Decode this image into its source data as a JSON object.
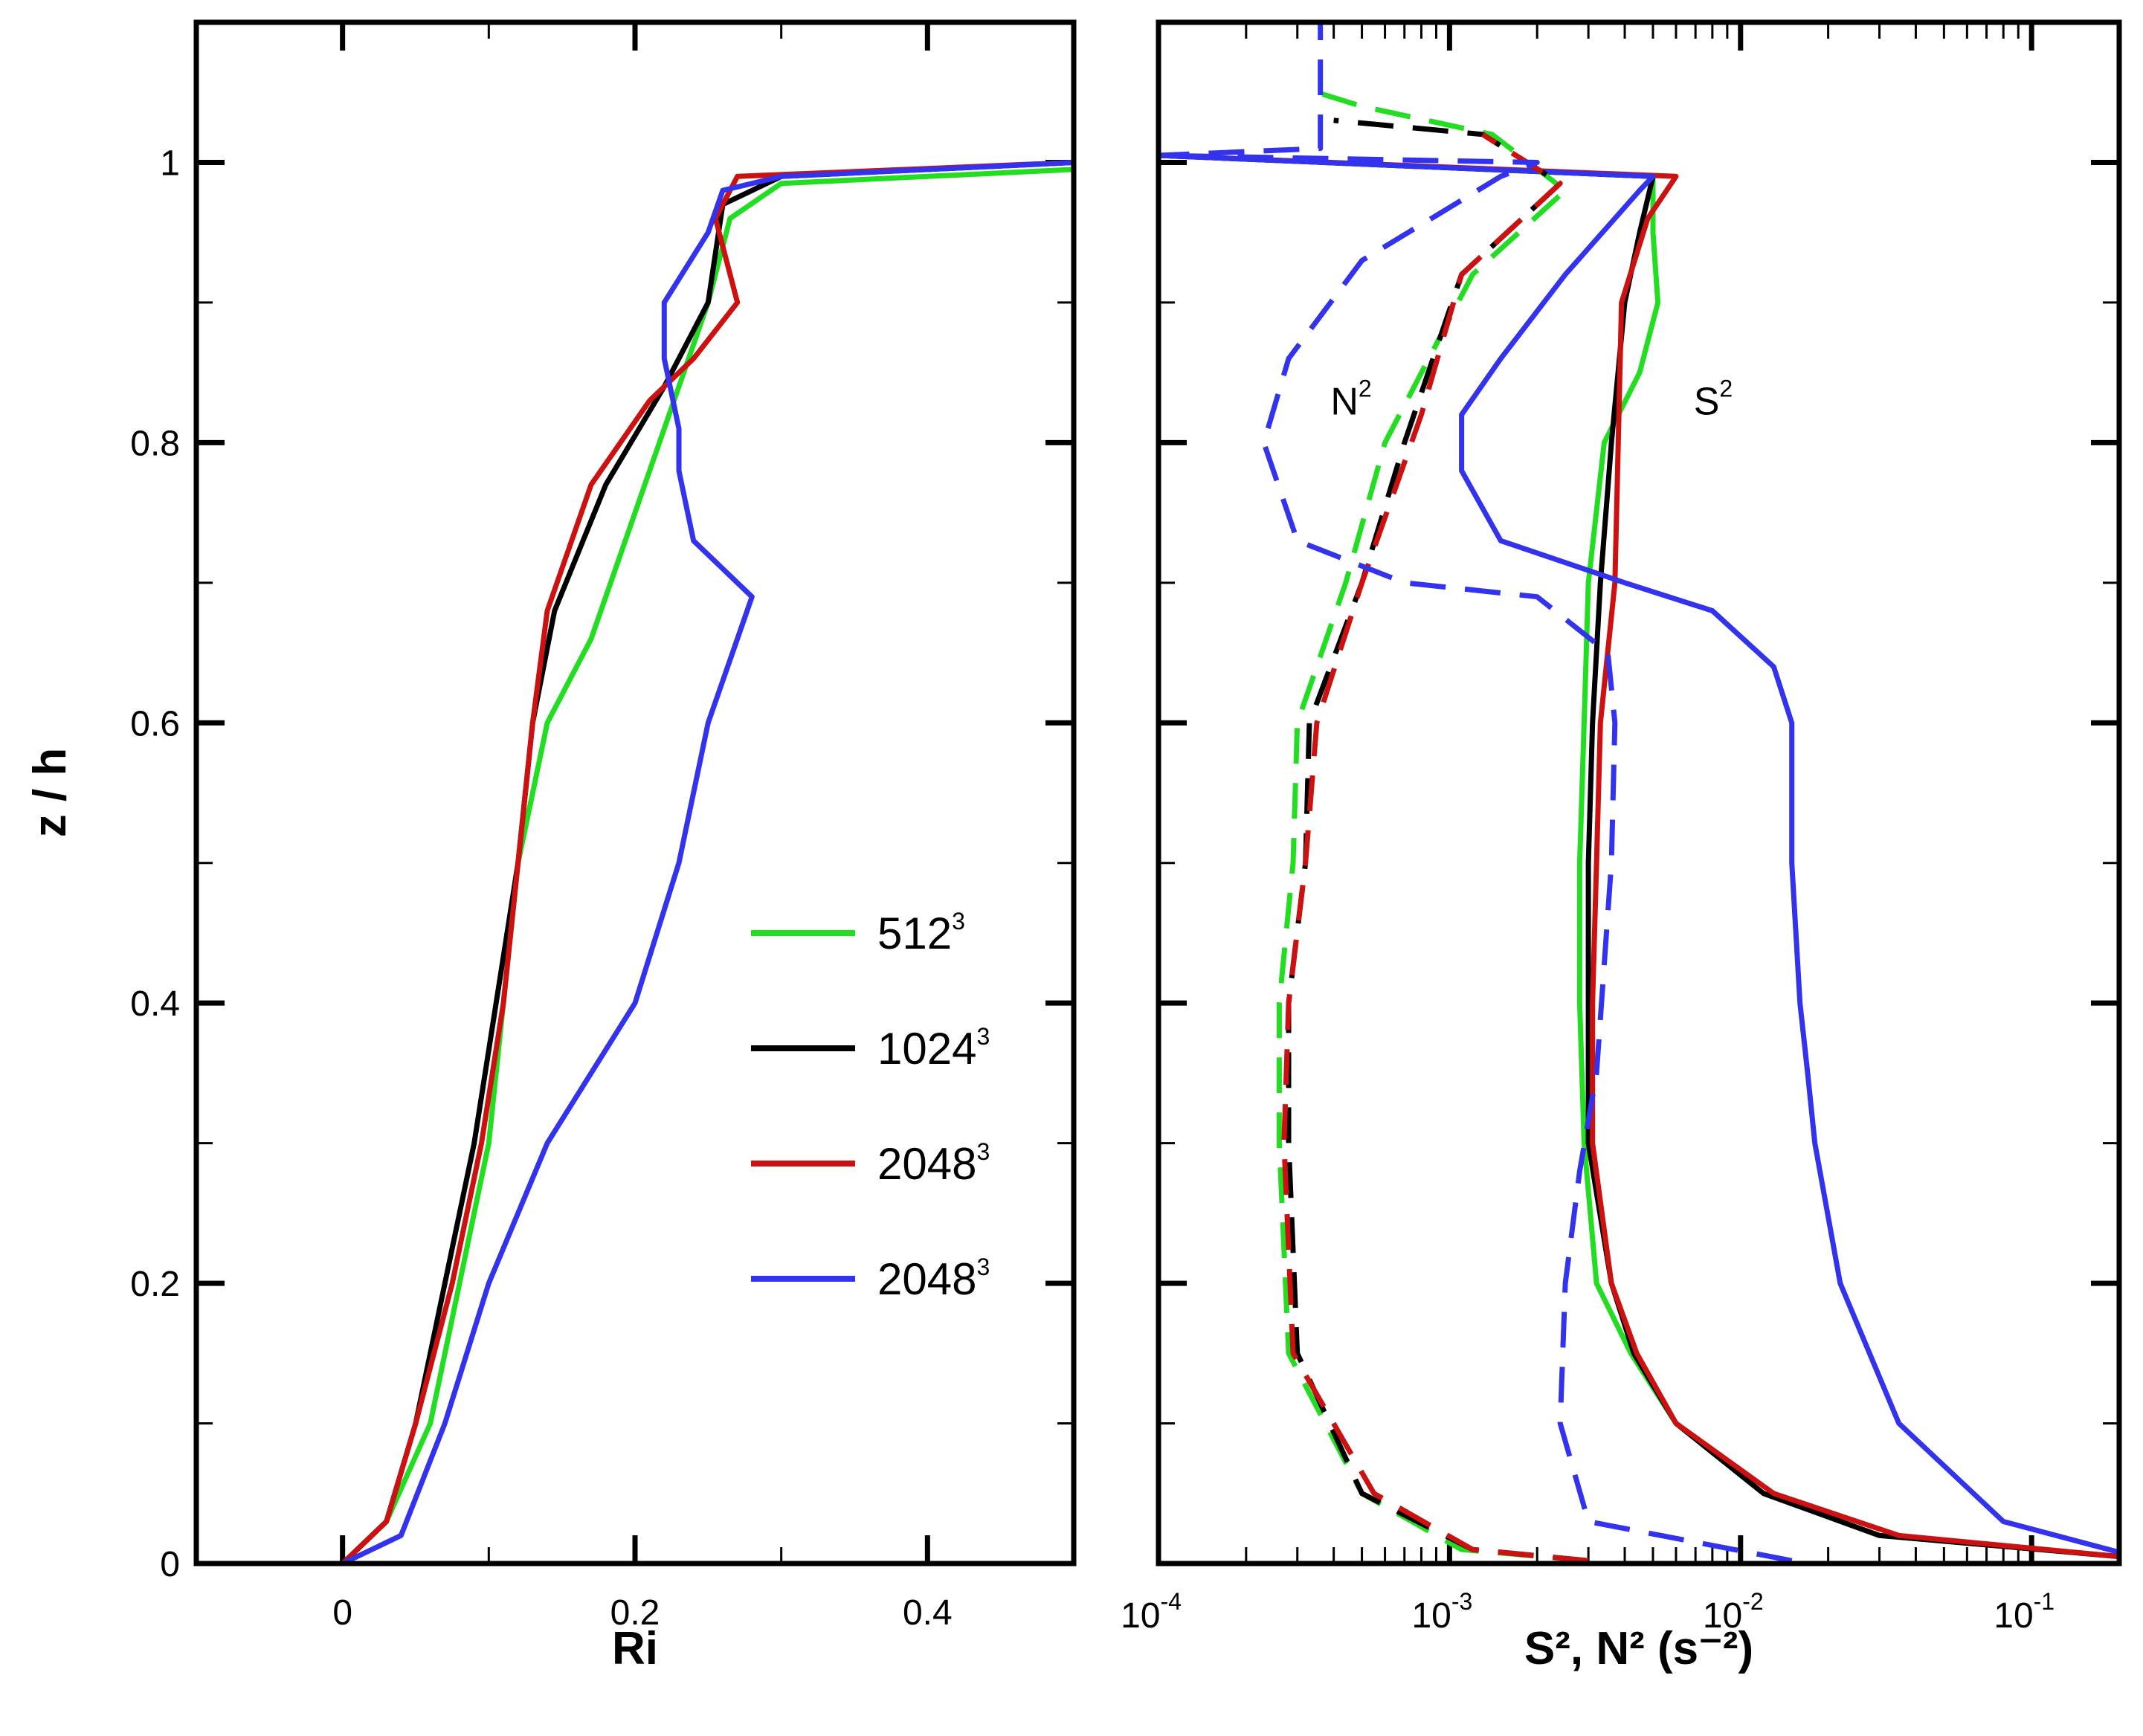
{
  "chart_data": [
    {
      "type": "line",
      "panel": "left",
      "xlabel": "Ri",
      "ylabel": "z / h",
      "xlim": [
        -0.1,
        0.5
      ],
      "ylim": [
        0,
        1.1
      ],
      "xticks": [
        0,
        0.2,
        0.4
      ],
      "xtick_labels": [
        "0",
        "0.2",
        "0.4"
      ],
      "yticks": [
        0,
        0.2,
        0.4,
        0.6,
        0.8,
        1
      ],
      "ytick_labels": [
        "0",
        "0.2",
        "0.4",
        "0.6",
        "0.8",
        "1"
      ],
      "legend": {
        "placement": "center-right",
        "entries": [
          {
            "base": "512",
            "sup": "3",
            "color": "#22dd22"
          },
          {
            "base": "1024",
            "sup": "3",
            "color": "#000000"
          },
          {
            "base": "2048",
            "sup": "3",
            "color": "#cc1111"
          },
          {
            "base": "2048",
            "sup": "3",
            "color": "#3333ee"
          }
        ]
      },
      "series": [
        {
          "name": "512^3",
          "color": "#22dd22",
          "points": [
            [
              0,
              0
            ],
            [
              0.03,
              0.03
            ],
            [
              0.06,
              0.1
            ],
            [
              0.08,
              0.2
            ],
            [
              0.1,
              0.3
            ],
            [
              0.11,
              0.4
            ],
            [
              0.12,
              0.5
            ],
            [
              0.14,
              0.6
            ],
            [
              0.17,
              0.66
            ],
            [
              0.2,
              0.75
            ],
            [
              0.23,
              0.84
            ],
            [
              0.25,
              0.9
            ],
            [
              0.265,
              0.96
            ],
            [
              0.3,
              0.985
            ],
            [
              0.5,
              0.995
            ]
          ]
        },
        {
          "name": "1024^3",
          "color": "#000000",
          "points": [
            [
              0,
              0
            ],
            [
              0.03,
              0.03
            ],
            [
              0.05,
              0.1
            ],
            [
              0.07,
              0.2
            ],
            [
              0.09,
              0.3
            ],
            [
              0.105,
              0.4
            ],
            [
              0.12,
              0.5
            ],
            [
              0.13,
              0.6
            ],
            [
              0.145,
              0.68
            ],
            [
              0.18,
              0.77
            ],
            [
              0.22,
              0.84
            ],
            [
              0.25,
              0.9
            ],
            [
              0.26,
              0.97
            ],
            [
              0.3,
              0.99
            ],
            [
              0.5,
              1.0
            ]
          ]
        },
        {
          "name": "2048^3",
          "color": "#cc1111",
          "points": [
            [
              0,
              0
            ],
            [
              0.03,
              0.03
            ],
            [
              0.05,
              0.1
            ],
            [
              0.075,
              0.2
            ],
            [
              0.095,
              0.3
            ],
            [
              0.11,
              0.4
            ],
            [
              0.12,
              0.5
            ],
            [
              0.13,
              0.6
            ],
            [
              0.14,
              0.68
            ],
            [
              0.17,
              0.77
            ],
            [
              0.21,
              0.83
            ],
            [
              0.24,
              0.86
            ],
            [
              0.27,
              0.9
            ],
            [
              0.255,
              0.96
            ],
            [
              0.27,
              0.99
            ],
            [
              0.5,
              1.0
            ]
          ]
        },
        {
          "name": "2048^3 (blue)",
          "color": "#3333ee",
          "points": [
            [
              0,
              0
            ],
            [
              0.04,
              0.02
            ],
            [
              0.07,
              0.1
            ],
            [
              0.1,
              0.2
            ],
            [
              0.14,
              0.3
            ],
            [
              0.17,
              0.35
            ],
            [
              0.2,
              0.4
            ],
            [
              0.23,
              0.5
            ],
            [
              0.25,
              0.6
            ],
            [
              0.27,
              0.66
            ],
            [
              0.28,
              0.69
            ],
            [
              0.24,
              0.73
            ],
            [
              0.23,
              0.78
            ],
            [
              0.23,
              0.81
            ],
            [
              0.22,
              0.86
            ],
            [
              0.22,
              0.9
            ],
            [
              0.25,
              0.95
            ],
            [
              0.26,
              0.98
            ],
            [
              0.3,
              0.99
            ],
            [
              0.5,
              1.0
            ]
          ]
        }
      ]
    },
    {
      "type": "line",
      "panel": "right",
      "xlabel": "S², N² (s⁻²)",
      "xscale": "log",
      "xlim": [
        0.0001,
        0.2
      ],
      "ylim": [
        0,
        1.1
      ],
      "xticks": [
        0.0001,
        0.001,
        0.01,
        0.1
      ],
      "xtick_labels": [
        {
          "base": "10",
          "exp": "-4"
        },
        {
          "base": "10",
          "exp": "-3"
        },
        {
          "base": "10",
          "exp": "-2"
        },
        {
          "base": "10",
          "exp": "-1"
        }
      ],
      "annotations": [
        {
          "text": "N",
          "sup": "2",
          "at": [
            0.00039,
            0.82
          ]
        },
        {
          "text": "S",
          "sup": "2",
          "at": [
            0.0069,
            0.82
          ]
        }
      ],
      "series": [
        {
          "name": "S² 512^3",
          "color": "#22dd22",
          "dash": "solid",
          "points": [
            [
              0.2,
              0.005
            ],
            [
              0.03,
              0.02
            ],
            [
              0.012,
              0.05
            ],
            [
              0.006,
              0.1
            ],
            [
              0.0042,
              0.15
            ],
            [
              0.0032,
              0.2
            ],
            [
              0.0029,
              0.3
            ],
            [
              0.0028,
              0.4
            ],
            [
              0.0028,
              0.5
            ],
            [
              0.0029,
              0.6
            ],
            [
              0.003,
              0.7
            ],
            [
              0.0034,
              0.8
            ],
            [
              0.0045,
              0.85
            ],
            [
              0.0052,
              0.9
            ],
            [
              0.005,
              0.95
            ],
            [
              0.005,
              0.99
            ],
            [
              0.0001,
              1.005
            ]
          ]
        },
        {
          "name": "S² 1024^3",
          "color": "#000000",
          "dash": "solid",
          "points": [
            [
              0.2,
              0.005
            ],
            [
              0.03,
              0.02
            ],
            [
              0.012,
              0.05
            ],
            [
              0.006,
              0.1
            ],
            [
              0.0043,
              0.15
            ],
            [
              0.0036,
              0.2
            ],
            [
              0.003,
              0.3
            ],
            [
              0.003,
              0.4
            ],
            [
              0.003,
              0.5
            ],
            [
              0.0031,
              0.6
            ],
            [
              0.0033,
              0.7
            ],
            [
              0.0036,
              0.8
            ],
            [
              0.004,
              0.9
            ],
            [
              0.0045,
              0.95
            ],
            [
              0.005,
              0.99
            ],
            [
              0.0001,
              1.005
            ]
          ]
        },
        {
          "name": "S² 2048^3",
          "color": "#cc1111",
          "dash": "solid",
          "points": [
            [
              0.2,
              0.005
            ],
            [
              0.035,
              0.02
            ],
            [
              0.013,
              0.05
            ],
            [
              0.006,
              0.1
            ],
            [
              0.0044,
              0.15
            ],
            [
              0.0036,
              0.2
            ],
            [
              0.0031,
              0.3
            ],
            [
              0.0031,
              0.4
            ],
            [
              0.0032,
              0.5
            ],
            [
              0.0033,
              0.6
            ],
            [
              0.0037,
              0.7
            ],
            [
              0.0038,
              0.8
            ],
            [
              0.0039,
              0.9
            ],
            [
              0.0048,
              0.96
            ],
            [
              0.006,
              0.99
            ],
            [
              0.0001,
              1.005
            ]
          ]
        },
        {
          "name": "S² 2048^3 (blue)",
          "color": "#3333ee",
          "dash": "solid",
          "points": [
            [
              0.2,
              0.008
            ],
            [
              0.08,
              0.03
            ],
            [
              0.035,
              0.1
            ],
            [
              0.022,
              0.2
            ],
            [
              0.018,
              0.3
            ],
            [
              0.017,
              0.35
            ],
            [
              0.016,
              0.4
            ],
            [
              0.015,
              0.5
            ],
            [
              0.015,
              0.6
            ],
            [
              0.013,
              0.64
            ],
            [
              0.008,
              0.68
            ],
            [
              0.004,
              0.7
            ],
            [
              0.0015,
              0.73
            ],
            [
              0.0011,
              0.78
            ],
            [
              0.0011,
              0.82
            ],
            [
              0.0015,
              0.86
            ],
            [
              0.0025,
              0.92
            ],
            [
              0.0045,
              0.98
            ],
            [
              0.005,
              0.99
            ],
            [
              0.0001,
              1.005
            ]
          ]
        },
        {
          "name": "N² 512^3",
          "color": "#22dd22",
          "dash": "dashed",
          "points": [
            [
              0.003,
              0.002
            ],
            [
              0.0011,
              0.01
            ],
            [
              0.0005,
              0.05
            ],
            [
              0.00028,
              0.15
            ],
            [
              0.00026,
              0.3
            ],
            [
              0.00026,
              0.4
            ],
            [
              0.00029,
              0.5
            ],
            [
              0.0003,
              0.6
            ],
            [
              0.00044,
              0.7
            ],
            [
              0.0006,
              0.8
            ],
            [
              0.0012,
              0.92
            ],
            [
              0.0025,
              0.98
            ],
            [
              0.0014,
              1.02
            ],
            [
              0.0005,
              1.04
            ],
            [
              0.00035,
              1.05
            ]
          ]
        },
        {
          "name": "N² 1024^3",
          "color": "#000000",
          "dash": "dashed",
          "points": [
            [
              0.003,
              0.002
            ],
            [
              0.0012,
              0.01
            ],
            [
              0.0005,
              0.05
            ],
            [
              0.0003,
              0.15
            ],
            [
              0.00028,
              0.3
            ],
            [
              0.00028,
              0.4
            ],
            [
              0.00032,
              0.5
            ],
            [
              0.00033,
              0.6
            ],
            [
              0.0005,
              0.7
            ],
            [
              0.0007,
              0.8
            ],
            [
              0.0011,
              0.92
            ],
            [
              0.0024,
              0.985
            ],
            [
              0.0013,
              1.02
            ],
            [
              0.0004,
              1.03
            ]
          ]
        },
        {
          "name": "N² 2048^3",
          "color": "#cc1111",
          "dash": "dashed",
          "points": [
            [
              0.003,
              0.002
            ],
            [
              0.0012,
              0.01
            ],
            [
              0.00055,
              0.05
            ],
            [
              0.00029,
              0.15
            ],
            [
              0.00027,
              0.3
            ],
            [
              0.00028,
              0.4
            ],
            [
              0.00032,
              0.5
            ],
            [
              0.00035,
              0.6
            ],
            [
              0.0005,
              0.7
            ],
            [
              0.0008,
              0.82
            ],
            [
              0.0011,
              0.92
            ],
            [
              0.0024,
              0.985
            ],
            [
              0.0013,
              1.02
            ]
          ]
        },
        {
          "name": "N² 2048^3 (blue)",
          "color": "#3333ee",
          "dash": "dashed",
          "points": [
            [
              0.015,
              0.002
            ],
            [
              0.003,
              0.03
            ],
            [
              0.0024,
              0.1
            ],
            [
              0.0025,
              0.2
            ],
            [
              0.0028,
              0.28
            ],
            [
              0.0032,
              0.35
            ],
            [
              0.0036,
              0.5
            ],
            [
              0.0037,
              0.6
            ],
            [
              0.0035,
              0.65
            ],
            [
              0.002,
              0.69
            ],
            [
              0.0007,
              0.7
            ],
            [
              0.0003,
              0.73
            ],
            [
              0.00023,
              0.8
            ],
            [
              0.00028,
              0.86
            ],
            [
              0.0005,
              0.93
            ],
            [
              0.0015,
              0.99
            ],
            [
              0.002,
              1.0
            ],
            [
              0.0001,
              1.005
            ],
            [
              0.00036,
              1.01
            ],
            [
              0.00036,
              1.1
            ]
          ]
        }
      ]
    }
  ]
}
